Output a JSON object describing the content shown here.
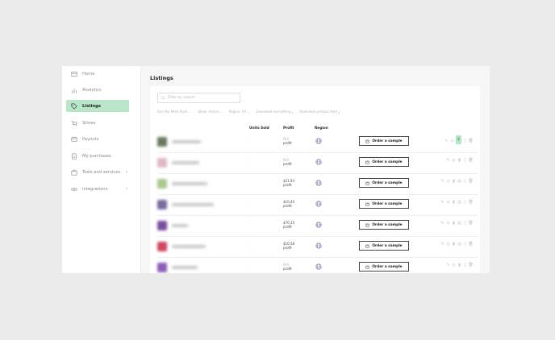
{
  "sidebar": {
    "items": [
      {
        "label": "Home",
        "icon": "home-icon"
      },
      {
        "label": "Analytics",
        "icon": "analytics-icon"
      },
      {
        "label": "Listings",
        "icon": "tag-icon",
        "active": true
      },
      {
        "label": "Stores",
        "icon": "cart-icon"
      },
      {
        "label": "Payouts",
        "icon": "wallet-icon"
      },
      {
        "label": "My purchases",
        "icon": "document-icon"
      },
      {
        "label": "Tools and services",
        "icon": "toolbox-icon",
        "chevron": "›"
      },
      {
        "label": "Integrations",
        "icon": "link-icon",
        "chevron": "›"
      }
    ]
  },
  "main": {
    "title": "Listings",
    "search": {
      "placeholder": "Filter by search"
    },
    "filters": {
      "sort": "Sort By: Most Rank",
      "show": "Show: Active",
      "region": "Region: All",
      "download_all": "Download everything",
      "download_feed": "Download product feed"
    },
    "table": {
      "headers": {
        "units": "Units Sold",
        "profit": "Profit",
        "region": "Region"
      },
      "order_label": "Order a sample",
      "rows": [
        {
          "thumb_color": "#6b7a5e",
          "profit_amount": "N/A",
          "profit_label": "profit",
          "muted": true
        },
        {
          "thumb_color": "#e0b8c8",
          "profit_amount": "N/A",
          "profit_label": "profit",
          "muted": true
        },
        {
          "thumb_color": "#a9c98a",
          "profit_amount": "$21.93",
          "profit_label": "profit",
          "muted": false
        },
        {
          "thumb_color": "#7a6aa0",
          "profit_amount": "$10.45",
          "profit_label": "profit",
          "muted": false
        },
        {
          "thumb_color": "#7a4e9e",
          "profit_amount": "$70.35",
          "profit_label": "profit",
          "muted": false
        },
        {
          "thumb_color": "#d2465e",
          "profit_amount": "$10.58",
          "profit_label": "profit",
          "muted": false
        },
        {
          "thumb_color": "#8b5cb8",
          "profit_amount": "N/A",
          "profit_label": "profit",
          "muted": true
        }
      ]
    }
  },
  "colors": {
    "accent": "#b9e5c9",
    "background": "#ebebeb",
    "text": "#222222"
  }
}
